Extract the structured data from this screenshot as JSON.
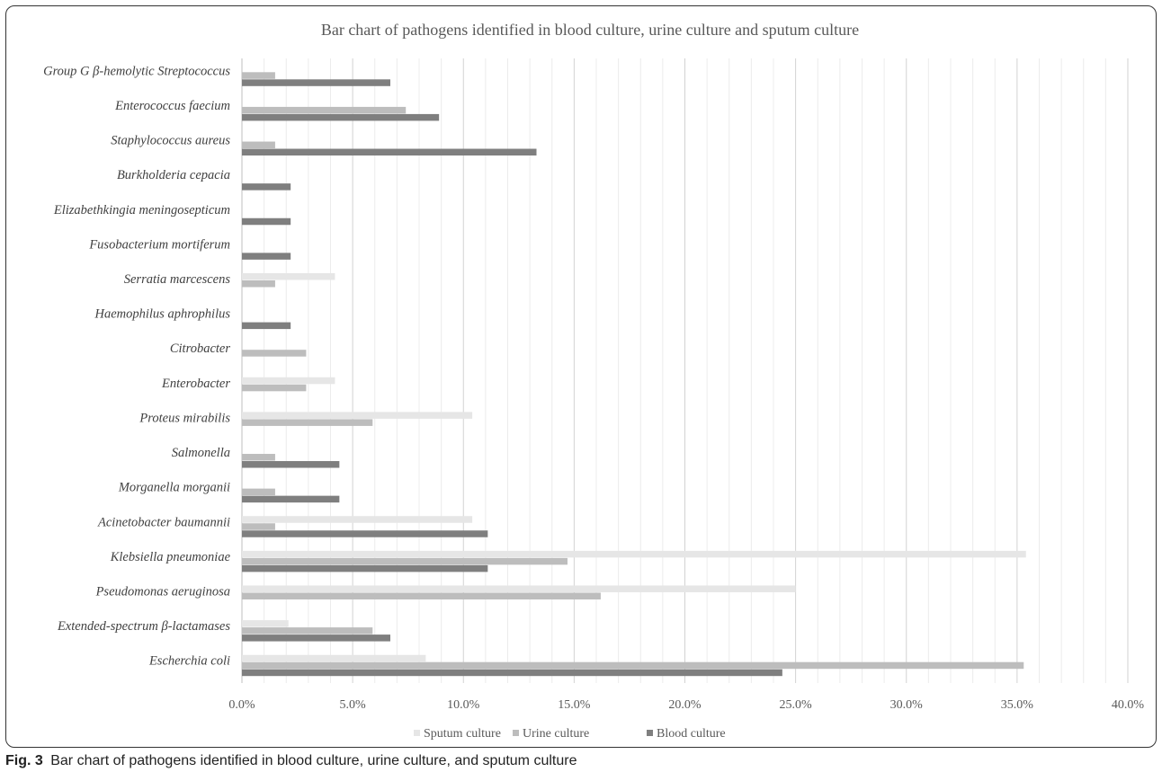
{
  "figure_caption": {
    "label": "Fig. 3",
    "text": "Bar chart of pathogens identified in blood culture, urine culture, and sputum culture"
  },
  "chart_data": {
    "type": "bar",
    "orientation": "horizontal",
    "title": "Bar chart of pathogens identified in blood culture, urine culture and sputum culture",
    "xlabel": "",
    "ylabel": "",
    "xlim": [
      0,
      40
    ],
    "x_tick_labels": [
      "0.0%",
      "5.0%",
      "10.0%",
      "15.0%",
      "20.0%",
      "25.0%",
      "30.0%",
      "35.0%",
      "40.0%"
    ],
    "grid": true,
    "legend_position": "bottom",
    "categories": [
      "Group G β-hemolytic Streptococcus",
      "Enterococcus faecium",
      "Staphylococcus aureus",
      "Burkholderia cepacia",
      "Elizabethkingia meningosepticum",
      "Fusobacterium mortiferum",
      "Serratia marcescens",
      "Haemophilus aphrophilus",
      "Citrobacter",
      "Enterobacter",
      "Proteus mirabilis",
      "Salmonella",
      "Morganella morganii",
      "Acinetobacter baumannii",
      "Klebsiella pneumoniae",
      "Pseudomonas aeruginosa",
      "Extended-spectrum β-lactamases",
      "Escherchia coli"
    ],
    "series": [
      {
        "name": "Sputum culture",
        "color": "#e6e6e6",
        "values": [
          0,
          0,
          0,
          0,
          0,
          0,
          4.2,
          0,
          0,
          4.2,
          10.4,
          0,
          0,
          10.4,
          35.4,
          25.0,
          2.1,
          8.3
        ]
      },
      {
        "name": "Urine culture",
        "color": "#bdbdbd",
        "values": [
          1.5,
          7.4,
          1.5,
          0,
          0,
          0,
          1.5,
          0,
          2.9,
          2.9,
          5.9,
          1.5,
          1.5,
          1.5,
          14.7,
          16.2,
          5.9,
          35.3
        ]
      },
      {
        "name": "Blood culture",
        "color": "#7f7f7f",
        "values": [
          6.7,
          8.9,
          13.3,
          2.2,
          2.2,
          2.2,
          0,
          2.2,
          0,
          0,
          0,
          4.4,
          4.4,
          11.1,
          11.1,
          0,
          6.7,
          24.4
        ]
      }
    ]
  }
}
